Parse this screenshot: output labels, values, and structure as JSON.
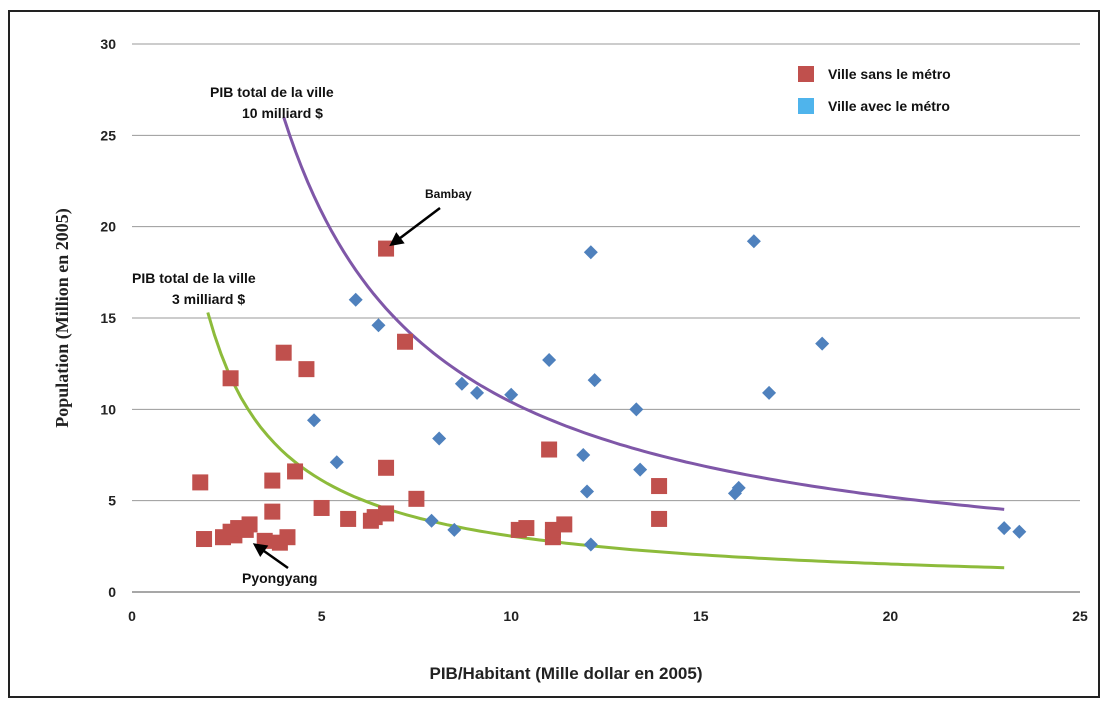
{
  "chart_data": {
    "type": "scatter",
    "title": "",
    "xlabel": "PIB/Habitant (Mille dollar en 2005)",
    "ylabel": "Population (Million en 2005)",
    "xlim": [
      0,
      25
    ],
    "ylim": [
      0,
      30
    ],
    "x_ticks": [
      "0",
      "5",
      "10",
      "15",
      "20",
      "25"
    ],
    "y_ticks": [
      "0",
      "5",
      "10",
      "15",
      "20",
      "25",
      "30"
    ],
    "grid": "horizontal",
    "legend_position": "top-right",
    "series": [
      {
        "name": "Ville sans le métro",
        "marker": "square",
        "color": "#c0504d",
        "points": [
          [
            1.8,
            6.0
          ],
          [
            1.9,
            2.9
          ],
          [
            2.4,
            3.0
          ],
          [
            2.6,
            3.3
          ],
          [
            2.6,
            11.7
          ],
          [
            2.7,
            3.1
          ],
          [
            2.8,
            3.5
          ],
          [
            3.0,
            3.4
          ],
          [
            3.1,
            3.7
          ],
          [
            3.5,
            2.8
          ],
          [
            3.7,
            6.1
          ],
          [
            3.7,
            4.4
          ],
          [
            3.9,
            2.7
          ],
          [
            4.0,
            13.1
          ],
          [
            4.1,
            3.0
          ],
          [
            4.3,
            6.6
          ],
          [
            4.6,
            12.2
          ],
          [
            5.0,
            4.6
          ],
          [
            5.7,
            4.0
          ],
          [
            6.3,
            3.9
          ],
          [
            6.4,
            4.1
          ],
          [
            6.7,
            4.3
          ],
          [
            6.7,
            6.8
          ],
          [
            6.7,
            18.8
          ],
          [
            7.2,
            13.7
          ],
          [
            7.5,
            5.1
          ],
          [
            10.2,
            3.4
          ],
          [
            10.4,
            3.5
          ],
          [
            11.0,
            7.8
          ],
          [
            11.1,
            3.0
          ],
          [
            11.1,
            3.4
          ],
          [
            11.4,
            3.7
          ],
          [
            13.9,
            5.8
          ],
          [
            13.9,
            4.0
          ]
        ]
      },
      {
        "name": "Ville avec le métro",
        "marker": "diamond",
        "color": "#4f81bd",
        "points": [
          [
            4.8,
            9.4
          ],
          [
            5.4,
            7.1
          ],
          [
            5.9,
            16.0
          ],
          [
            6.5,
            14.6
          ],
          [
            7.9,
            3.9
          ],
          [
            8.1,
            8.4
          ],
          [
            8.5,
            3.4
          ],
          [
            8.7,
            11.4
          ],
          [
            9.1,
            10.9
          ],
          [
            10.0,
            10.8
          ],
          [
            11.0,
            12.7
          ],
          [
            11.9,
            7.5
          ],
          [
            12.0,
            5.5
          ],
          [
            12.1,
            18.6
          ],
          [
            12.1,
            2.6
          ],
          [
            12.2,
            11.6
          ],
          [
            13.3,
            10.0
          ],
          [
            13.4,
            6.7
          ],
          [
            15.9,
            5.4
          ],
          [
            16.0,
            5.7
          ],
          [
            16.4,
            19.2
          ],
          [
            16.8,
            10.9
          ],
          [
            18.2,
            13.6
          ],
          [
            23.0,
            3.5
          ],
          [
            23.4,
            3.3
          ]
        ]
      }
    ],
    "curves": [
      {
        "label_lines": [
          "PIB total de la ville",
          "10 milliard $"
        ],
        "total": 104,
        "x_from": 4.0,
        "x_to": 23.0,
        "color": "#7f57a8"
      },
      {
        "label_lines": [
          "PIB total de la ville",
          "3 milliard $"
        ],
        "total": 30.6,
        "x_from": 2.0,
        "x_to": 23.0,
        "color": "#8dbb3b"
      }
    ],
    "annotations": [
      {
        "text": "Bambay",
        "arrow_to": [
          6.7,
          18.8
        ]
      },
      {
        "text": "Pyongyang",
        "arrow_to": [
          3.1,
          2.8
        ]
      }
    ]
  }
}
